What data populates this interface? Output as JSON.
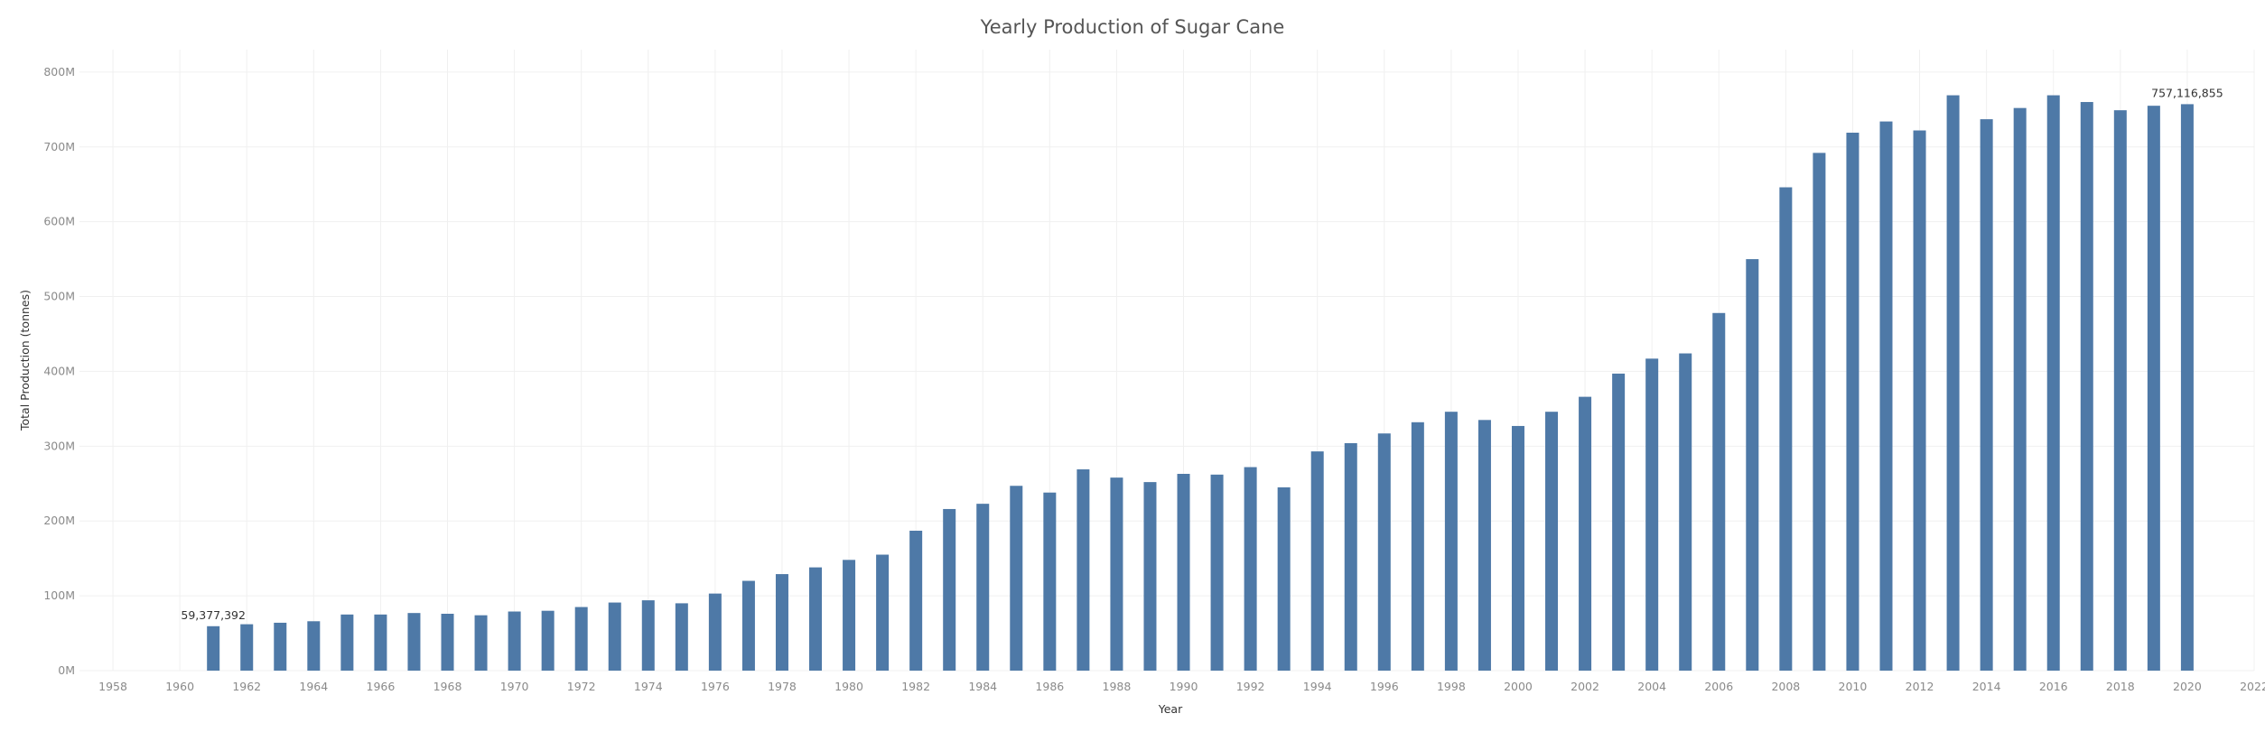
{
  "chart_data": {
    "type": "bar",
    "title": "Yearly Production of Sugar Cane",
    "xlabel": "Year",
    "ylabel": "Total Production (tonnes)",
    "xlim": [
      1957,
      2022
    ],
    "ylim": [
      0,
      830000000
    ],
    "x_ticks": [
      1958,
      1960,
      1962,
      1964,
      1966,
      1968,
      1970,
      1972,
      1974,
      1976,
      1978,
      1980,
      1982,
      1984,
      1986,
      1988,
      1990,
      1992,
      1994,
      1996,
      1998,
      2000,
      2002,
      2004,
      2006,
      2008,
      2010,
      2012,
      2014,
      2016,
      2018,
      2020,
      2022
    ],
    "y_ticks": [
      0,
      100000000,
      200000000,
      300000000,
      400000000,
      500000000,
      600000000,
      700000000,
      800000000
    ],
    "y_tick_labels": [
      "0M",
      "100M",
      "200M",
      "300M",
      "400M",
      "500M",
      "600M",
      "700M",
      "800M"
    ],
    "grid": true,
    "bar_color": "#4e79a7",
    "x": [
      1961,
      1962,
      1963,
      1964,
      1965,
      1966,
      1967,
      1968,
      1969,
      1970,
      1971,
      1972,
      1973,
      1974,
      1975,
      1976,
      1977,
      1978,
      1979,
      1980,
      1981,
      1982,
      1983,
      1984,
      1985,
      1986,
      1987,
      1988,
      1989,
      1990,
      1991,
      1992,
      1993,
      1994,
      1995,
      1996,
      1997,
      1998,
      1999,
      2000,
      2001,
      2002,
      2003,
      2004,
      2005,
      2006,
      2007,
      2008,
      2009,
      2010,
      2011,
      2012,
      2013,
      2014,
      2015,
      2016,
      2017,
      2018,
      2019,
      2020
    ],
    "values": [
      59377392,
      62000000,
      64000000,
      66000000,
      75000000,
      75000000,
      77000000,
      76000000,
      74000000,
      79000000,
      80000000,
      85000000,
      91000000,
      94000000,
      90000000,
      103000000,
      120000000,
      129000000,
      138000000,
      148000000,
      155000000,
      187000000,
      216000000,
      223000000,
      247000000,
      238000000,
      269000000,
      258000000,
      252000000,
      263000000,
      262000000,
      272000000,
      245000000,
      293000000,
      304000000,
      317000000,
      332000000,
      346000000,
      335000000,
      327000000,
      346000000,
      366000000,
      397000000,
      417000000,
      424000000,
      478000000,
      550000000,
      646000000,
      692000000,
      719000000,
      734000000,
      722000000,
      769000000,
      737000000,
      752000000,
      769000000,
      760000000,
      749000000,
      755000000,
      757116855
    ],
    "annotations": [
      {
        "x": 1961,
        "text": "59,377,392"
      },
      {
        "x": 2020,
        "text": "757,116,855"
      }
    ]
  }
}
